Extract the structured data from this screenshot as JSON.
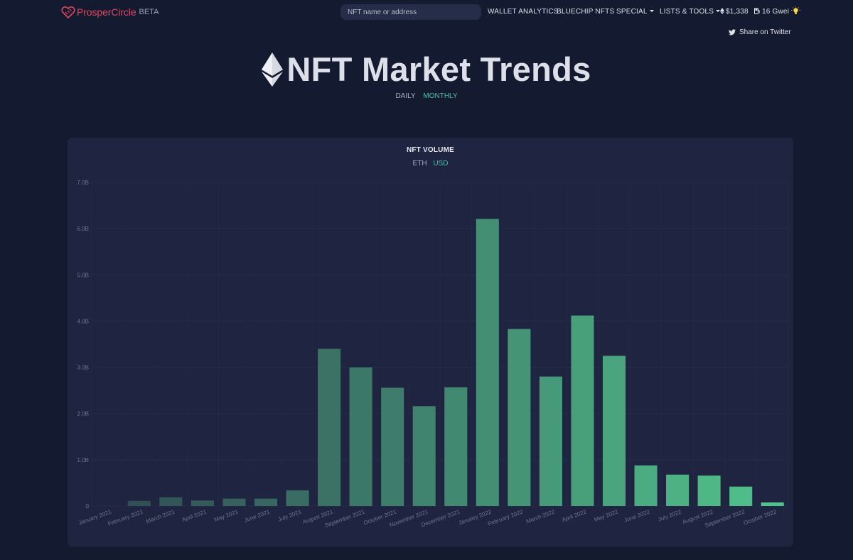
{
  "brand": {
    "name": "ProsperCircle",
    "badge": "BETA"
  },
  "search": {
    "placeholder": "NFT name or address"
  },
  "nav": {
    "wallet_analytics": "WALLET ANALYTICS",
    "bluechip_nfts": "BLUECHIP NFTS",
    "special": "SPECIAL",
    "lists_tools": "LISTS & TOOLS",
    "eth_price": "$1,338",
    "gas": "16 Gwei"
  },
  "share": {
    "label": "Share on Twitter"
  },
  "hero": {
    "title": "NFT Market Trends"
  },
  "period": {
    "daily": "DAILY",
    "monthly": "MONTHLY",
    "selected": "MONTHLY"
  },
  "card": {
    "title": "NFT VOLUME",
    "unit_eth": "ETH",
    "unit_usd": "USD",
    "selected_unit": "USD"
  },
  "colors": {
    "accent": "#4fbfa8",
    "brand": "#e0475e",
    "background": "#141a30",
    "card": "#1f2540"
  },
  "chart_data": {
    "type": "bar",
    "title": "NFT VOLUME",
    "xlabel": "",
    "ylabel": "",
    "ylim": [
      0,
      7000000000
    ],
    "grid": true,
    "y_tick_labels": [
      "0",
      "1.0B",
      "2.0B",
      "3.0B",
      "4.0B",
      "5.0B",
      "6.0B",
      "7.0B"
    ],
    "categories": [
      "January 2021",
      "February 2021",
      "March 2021",
      "April 2021",
      "May 2021",
      "June 2021",
      "July 2021",
      "August 2021",
      "September 2021",
      "October 2021",
      "November 2021",
      "December 2021",
      "January 2022",
      "February 2022",
      "March 2022",
      "April 2022",
      "May 2022",
      "June 2022",
      "July 2022",
      "August 2022",
      "September 2022",
      "October 2022"
    ],
    "values": [
      0,
      110000000,
      190000000,
      120000000,
      160000000,
      160000000,
      340000000,
      3400000000,
      3000000000,
      2560000000,
      2160000000,
      2570000000,
      6210000000,
      3830000000,
      2800000000,
      4120000000,
      3250000000,
      880000000,
      680000000,
      660000000,
      420000000,
      80000000
    ],
    "bar_color_start": "#2f4a52",
    "bar_color_end": "#52c28c"
  }
}
